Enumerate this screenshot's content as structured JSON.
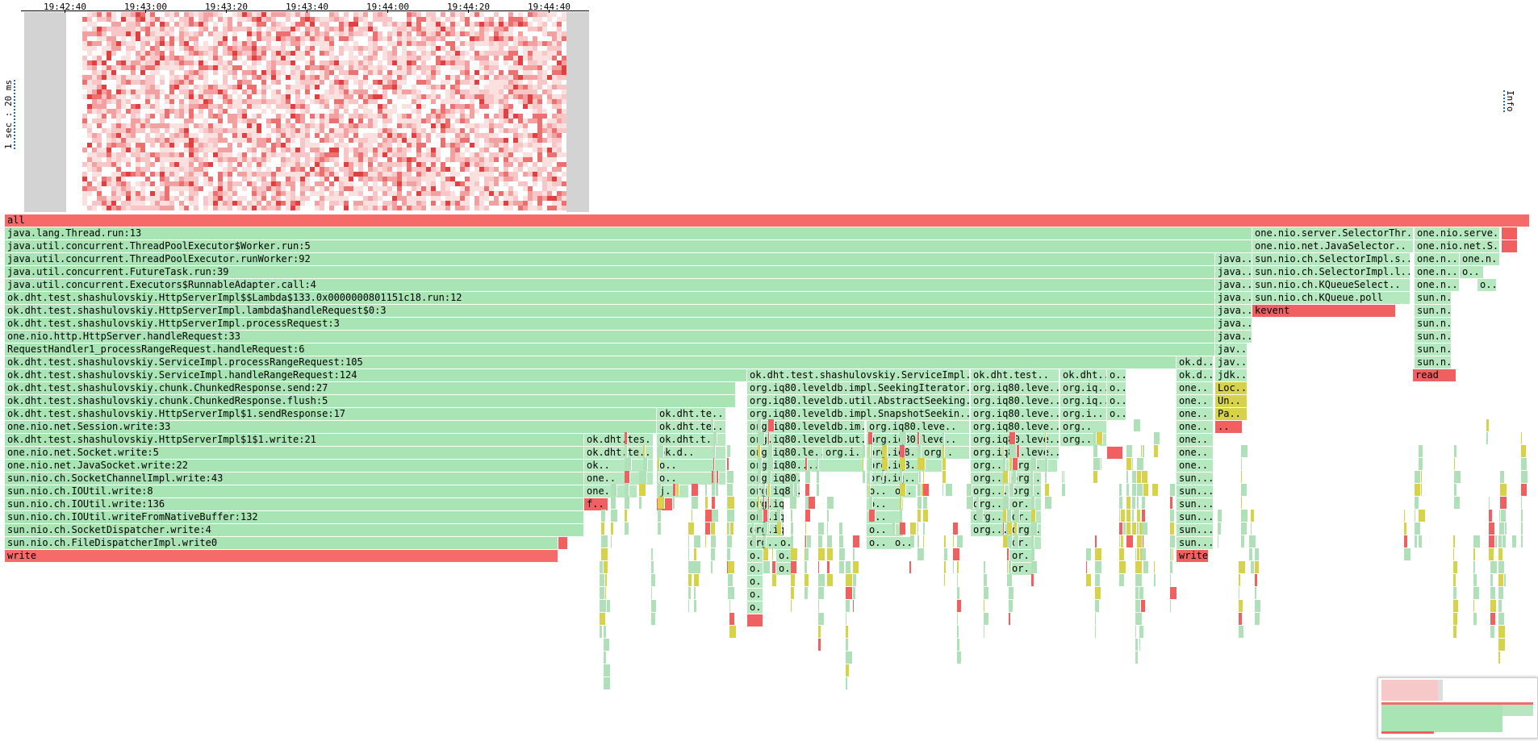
{
  "timeline": {
    "ticks": [
      "19:42:40",
      "19:43:00",
      "19:43:20",
      "19:43:40",
      "19:44:00",
      "19:44:20",
      "19:44:40"
    ],
    "y_label": "1 sec : 20 ms"
  },
  "info_label": "Info",
  "colors": {
    "root": "#f66a6a",
    "java": "#a8e4b4",
    "native": "#d0d040",
    "kernel": "#f06060",
    "grey": "#d3d3d3"
  },
  "frames": {
    "all": "all",
    "thread_run": "java.lang.Thread.run:13",
    "worker_run": "java.util.concurrent.ThreadPoolExecutor$Worker.run:5",
    "run_worker": "java.util.concurrent.ThreadPoolExecutor.runWorker:92",
    "future_run": "java.util.concurrent.FutureTask.run:39",
    "runnable_call": "java.util.concurrent.Executors$RunnableAdapter.call:4",
    "lambda_run": "ok.dht.test.shashulovskiy.HttpServerImpl$$Lambda$133.0x0000000801151c18.run:12",
    "lambda_handle": "ok.dht.test.shashulovskiy.HttpServerImpl.lambda$handleRequest$0:3",
    "process_request": "ok.dht.test.shashulovskiy.HttpServerImpl.processRequest:3",
    "handle_request": "one.nio.http.HttpServer.handleRequest:33",
    "range_handler": "RequestHandler1_processRangeRequest.handleRequest:6",
    "process_range": "ok.dht.test.shashulovskiy.ServiceImpl.processRangeRequest:105",
    "handle_range": "ok.dht.test.shashulovskiy.ServiceImpl.handleRangeRequest:124",
    "chunked_send": "ok.dht.test.shashulovskiy.chunk.ChunkedResponse.send:27",
    "chunked_flush": "ok.dht.test.shashulovskiy.chunk.ChunkedResponse.flush:5",
    "send_response": "ok.dht.test.shashulovskiy.HttpServerImpl$1.sendResponse:17",
    "session_write": "one.nio.net.Session.write:33",
    "server_write": "ok.dht.test.shashulovskiy.HttpServerImpl$1$1.write:21",
    "socket_write": "one.nio.net.Socket.write:5",
    "java_socket_write": "one.nio.net.JavaSocket.write:22",
    "channel_write": "sun.nio.ch.SocketChannelImpl.write:43",
    "ioutil_write8": "sun.nio.ch.IOUtil.write:8",
    "ioutil_write136": "sun.nio.ch.IOUtil.write:136",
    "write_native": "sun.nio.ch.IOUtil.writeFromNativeBuffer:132",
    "dispatcher_write": "sun.nio.ch.SocketDispatcher.write:4",
    "file_dispatcher": "sun.nio.ch.FileDispatcherImpl.write0",
    "write": "write",
    "service_impl": "ok.dht.test.shashulovskiy.ServiceImpl..",
    "seeking_iter": "org.iq80.leveldb.impl.SeekingIterator..",
    "abstract_seeking": "org.iq80.leveldb.util.AbstractSeeking..",
    "snapshot_seekin": "org.iq80.leveldb.impl.SnapshotSeekin..",
    "leveldb_im": "org.iq80.leveldb.im..",
    "leveldb_ut": "org.iq80.leveldb.ut..",
    "iq80_le": "org.iq80.le..",
    "iq80_dots": "org.iq80....",
    "iq80_short": "org.iq8..",
    "iq80_leve": "org.iq80.leve..",
    "iq80_lev": "org.iq80.leve..",
    "iq80_i": "org.i..",
    "iq80_iq": "org.iq..",
    "iq80_q": "org.iq..",
    "org": "org..",
    "org_dots": "org...",
    "or": "or..",
    "o": "o..",
    "ok_test": "ok.dht.test..",
    "ok_tes": "ok.dht.tes..",
    "ok_te": "ok.dht.te..",
    "ok_t": "ok.dht.t..",
    "ok_d": "ok.d..",
    "ok_dht": "ok.dht..",
    "ok": "ok..",
    "one": "one..",
    "one_short": "one..",
    "f": "f..",
    "j": "j..",
    "java": "java..",
    "jav": "jav..",
    "jdk": "jdk..",
    "loc": "Loc..",
    "un": "Un..",
    "pa": "Pa..",
    "dots": "..",
    "selector_thr": "one.nio.server.SelectorThr..",
    "java_selector": "one.nio.net.JavaSelector..",
    "selector_impl_s": "sun.nio.ch.SelectorImpl.s..",
    "selector_impl_l": "sun.nio.ch.SelectorImpl.l..",
    "kqueue_select": "sun.nio.ch.KQueueSelect..",
    "kqueue_poll": "sun.nio.ch.KQueue.poll",
    "kevent": "kevent",
    "one_nio_serve": "one.nio.serve..",
    "one_nio_net_s": "one.nio.net.S..",
    "one_n": "one.n..",
    "sun_n": "sun.n..",
    "sun": "sun....",
    "read": "read"
  }
}
